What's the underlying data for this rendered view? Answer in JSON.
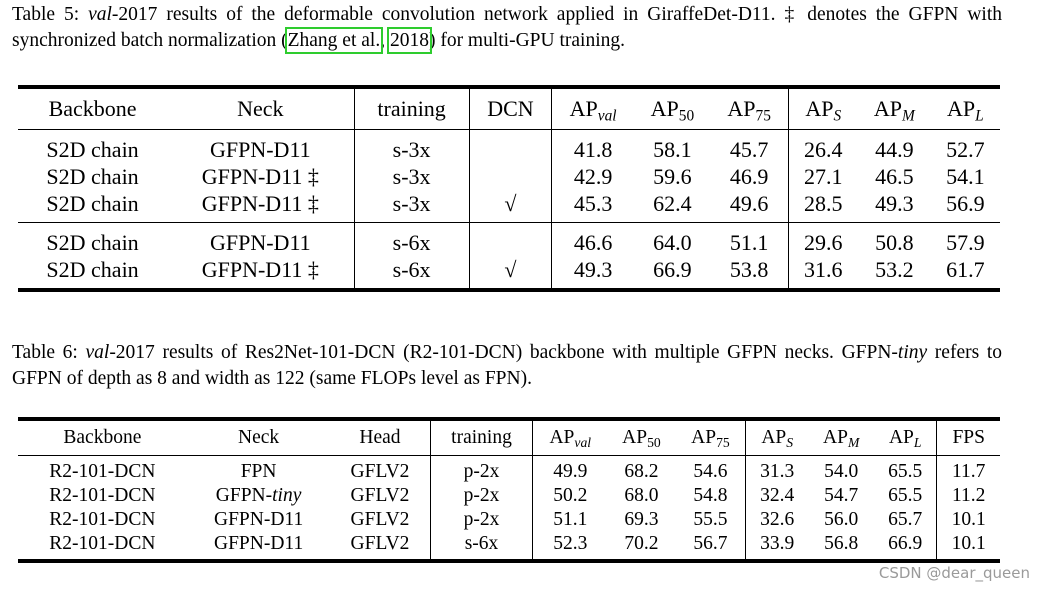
{
  "tables": [
    {
      "caption": [
        {
          "text": "Table 5: "
        },
        {
          "text": "val",
          "italic": true
        },
        {
          "text": "-2017 results of the deformable convolution network applied in GiraffeDet-D11. ‡ denotes the GFPN with synchronized batch normalization ("
        },
        {
          "text": "Zhang et al.",
          "link": true
        },
        {
          "text": ", "
        },
        {
          "text": "2018",
          "link": true
        },
        {
          "text": ") for multi-GPU training."
        }
      ],
      "header": [
        "Backbone",
        "Neck",
        "training",
        "DCN",
        {
          "text": "AP",
          "sub": "val",
          "sub_italic": true
        },
        {
          "text": "AP",
          "sub": "50"
        },
        {
          "text": "AP",
          "sub": "75"
        },
        {
          "text": "AP",
          "sub": "S",
          "sub_italic": true
        },
        {
          "text": "AP",
          "sub": "M",
          "sub_italic": true
        },
        {
          "text": "AP",
          "sub": "L",
          "sub_italic": true
        }
      ],
      "groups": [
        [
          [
            "S2D chain",
            "GFPN-D11",
            "s-3x",
            null,
            "41.8",
            "58.1",
            "45.7",
            "26.4",
            "44.9",
            "52.7"
          ],
          [
            "S2D chain",
            "GFPN-D11 ‡",
            "s-3x",
            null,
            "42.9",
            "59.6",
            "46.9",
            "27.1",
            "46.5",
            "54.1"
          ],
          [
            "S2D chain",
            "GFPN-D11 ‡",
            "s-3x",
            "√",
            "45.3",
            "62.4",
            "49.6",
            "28.5",
            "49.3",
            "56.9"
          ]
        ],
        [
          [
            "S2D chain",
            "GFPN-D11",
            "s-6x",
            null,
            "46.6",
            "64.0",
            "51.1",
            "29.6",
            "50.8",
            "57.9"
          ],
          [
            "S2D chain",
            "GFPN-D11 ‡",
            "s-6x",
            "√",
            "49.3",
            "66.9",
            "53.8",
            "31.6",
            "53.2",
            "61.7"
          ]
        ]
      ]
    },
    {
      "caption": [
        {
          "text": "Table 6: "
        },
        {
          "text": "val",
          "italic": true
        },
        {
          "text": "-2017 results of Res2Net-101-DCN (R2-101-DCN) backbone with multiple GFPN necks. GFPN-"
        },
        {
          "text": "tiny",
          "italic": true
        },
        {
          "text": " refers to GFPN of depth as 8 and width as 122 (same FLOPs level as FPN)."
        }
      ],
      "header": [
        "Backbone",
        "Neck",
        "Head",
        "training",
        {
          "text": "AP",
          "sub": "val",
          "sub_italic": true
        },
        {
          "text": "AP",
          "sub": "50"
        },
        {
          "text": "AP",
          "sub": "75"
        },
        {
          "text": "AP",
          "sub": "S",
          "sub_italic": true
        },
        {
          "text": "AP",
          "sub": "M",
          "sub_italic": true
        },
        {
          "text": "AP",
          "sub": "L",
          "sub_italic": true
        },
        "FPS"
      ],
      "groups": [
        [
          [
            "R2-101-DCN",
            "FPN",
            "GFLV2",
            "p-2x",
            "49.9",
            "68.2",
            "54.6",
            "31.3",
            "54.0",
            "65.5",
            "11.7"
          ],
          [
            "R2-101-DCN",
            [
              {
                "text": "GFPN-"
              },
              {
                "text": "tiny",
                "italic": true
              }
            ],
            "GFLV2",
            "p-2x",
            "50.2",
            "68.0",
            "54.8",
            "32.4",
            "54.7",
            "65.5",
            "11.2"
          ],
          [
            "R2-101-DCN",
            "GFPN-D11",
            "GFLV2",
            "p-2x",
            "51.1",
            "69.3",
            "55.5",
            "32.6",
            "56.0",
            "65.7",
            "10.1"
          ],
          [
            "R2-101-DCN",
            "GFPN-D11",
            "GFLV2",
            "s-6x",
            "52.3",
            "70.2",
            "56.7",
            "33.9",
            "56.8",
            "66.9",
            "10.1"
          ]
        ]
      ]
    }
  ],
  "watermark": "CSDN @dear_queen"
}
